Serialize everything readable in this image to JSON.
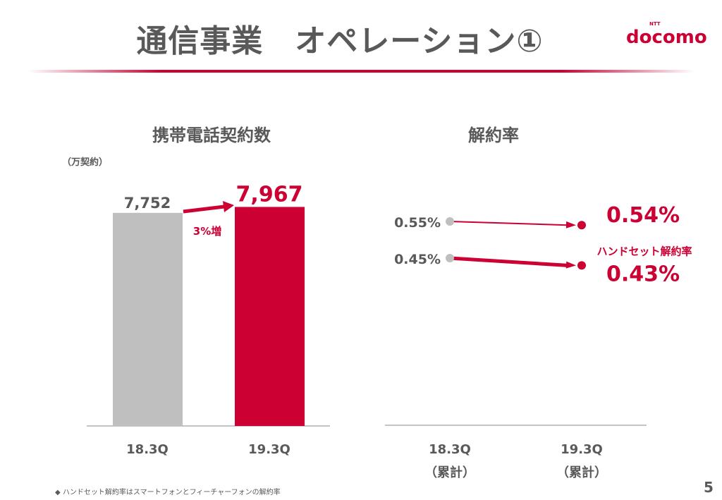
{
  "title": "通信事業　オペレーション①",
  "logo": {
    "brand": "docomo",
    "sub": "NTT"
  },
  "page_number": "5",
  "footnote": "◆ ハンドセット解約率はスマートフォンとフィーチャーフォンの解約率",
  "chart_data": [
    {
      "type": "bar",
      "title": "携帯電話契約数",
      "ylabel": "（万契約）",
      "categories": [
        "18.3Q",
        "19.3Q"
      ],
      "values": [
        7752,
        7967
      ],
      "value_labels": [
        "7,752",
        "7,967"
      ],
      "annotation": "3%増",
      "colors": [
        "#bfbfbf",
        "#cc0033"
      ],
      "ylim": [
        0,
        8000
      ]
    },
    {
      "type": "line",
      "title": "解約率",
      "categories": [
        "18.3Q\n（累計）",
        "19.3Q\n（累計）"
      ],
      "category_lines": [
        [
          "18.3Q",
          "（累計）"
        ],
        [
          "19.3Q",
          "（累計）"
        ]
      ],
      "series": [
        {
          "values": [
            0.55,
            0.54
          ],
          "labels": [
            "0.55%",
            "0.54%"
          ]
        },
        {
          "name": "ハンドセット解約率",
          "values": [
            0.45,
            0.43
          ],
          "labels": [
            "0.45%",
            "0.43%"
          ]
        }
      ],
      "colors": {
        "start": "#bfbfbf",
        "end": "#cc0033"
      }
    }
  ]
}
